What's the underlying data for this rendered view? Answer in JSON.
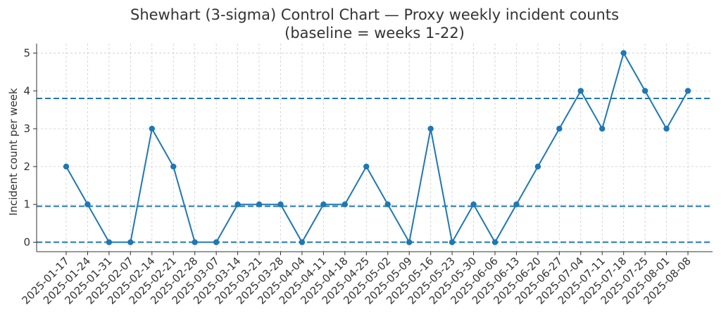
{
  "chart_data": {
    "type": "line",
    "title": "Shewhart (3-sigma) Control Chart — Proxy weekly incident counts",
    "subtitle": "(baseline = weeks 1-22)",
    "xlabel": "",
    "ylabel": "Incident count per week",
    "categories": [
      "2025-01-17",
      "2025-01-24",
      "2025-01-31",
      "2025-02-07",
      "2025-02-14",
      "2025-02-21",
      "2025-02-28",
      "2025-03-07",
      "2025-03-14",
      "2025-03-21",
      "2025-03-28",
      "2025-04-04",
      "2025-04-11",
      "2025-04-18",
      "2025-04-25",
      "2025-05-02",
      "2025-05-09",
      "2025-05-16",
      "2025-05-23",
      "2025-05-30",
      "2025-06-06",
      "2025-06-13",
      "2025-06-20",
      "2025-06-27",
      "2025-07-04",
      "2025-07-11",
      "2025-07-18",
      "2025-07-25",
      "2025-08-01",
      "2025-08-08"
    ],
    "series": [
      {
        "values": [
          2,
          1,
          0,
          0,
          3,
          2,
          0,
          0,
          1,
          1,
          1,
          0,
          1,
          1,
          2,
          1,
          0,
          3,
          0,
          1,
          0,
          1,
          2,
          3,
          4,
          3,
          5,
          4,
          3,
          4
        ]
      }
    ],
    "reference_lines": [
      3.8,
      0.95,
      0
    ],
    "yticks": [
      0,
      1,
      2,
      3,
      4,
      5
    ],
    "ylim": [
      -0.25,
      5.25
    ],
    "grid": true,
    "colors": {
      "series": "#1f77b4",
      "reference": "#1f77b4"
    }
  }
}
